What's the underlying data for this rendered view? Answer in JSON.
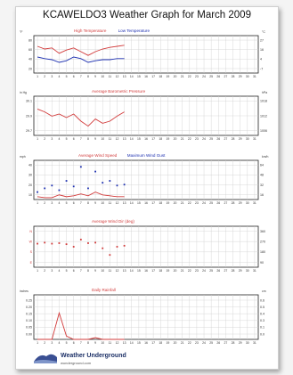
{
  "page": {
    "title": "KCAWELDO3 Weather Graph for March 2009"
  },
  "logo": {
    "name": "Weather Underground",
    "url": "wunderground.com"
  },
  "colors": {
    "red": "#d23b3b",
    "blue": "#1c2fb0",
    "grid": "#cfcfcf"
  },
  "chart_data": [
    {
      "type": "line",
      "title": "",
      "legend": [
        "High Temperature",
        "Low Temperature"
      ],
      "ylabel_left": "°F",
      "ylabel_right": "°C",
      "left_ticks": [
        "80",
        "60",
        "40",
        "20"
      ],
      "right_ticks": [
        "27",
        "16",
        "4",
        "-7"
      ],
      "ylim": [
        15,
        85
      ],
      "x": [
        1,
        2,
        3,
        4,
        5,
        6,
        7,
        8,
        9,
        10,
        11,
        12,
        13,
        14,
        15,
        16,
        17,
        18,
        19,
        20,
        21,
        22,
        23,
        24,
        25,
        26,
        27,
        28,
        29,
        30,
        31
      ],
      "series": [
        {
          "name": "High Temperature",
          "color": "#d23b3b",
          "x": [
            1,
            2,
            3,
            4,
            5,
            6,
            7,
            8,
            9,
            10,
            11,
            12,
            13
          ],
          "values": [
            65,
            60,
            62,
            52,
            58,
            62,
            55,
            48,
            55,
            60,
            63,
            65,
            67
          ]
        },
        {
          "name": "Low Temperature",
          "color": "#1c2fb0",
          "x": [
            1,
            2,
            3,
            4,
            5,
            6,
            7,
            8,
            9,
            10,
            11,
            12,
            13
          ],
          "values": [
            45,
            42,
            40,
            35,
            38,
            45,
            42,
            35,
            38,
            40,
            40,
            42,
            42
          ]
        }
      ]
    },
    {
      "type": "line",
      "title": "Average Barometric Pressure",
      "legend": [
        "Average Barometric Pressure"
      ],
      "ylabel_left": "in Hg",
      "ylabel_right": "hPa",
      "left_ticks": [
        "30.1",
        "29.9",
        "29.7"
      ],
      "right_ticks": [
        "1018",
        "1012",
        "1006"
      ],
      "ylim": [
        29.65,
        30.2
      ],
      "x": [
        1,
        2,
        3,
        4,
        5,
        6,
        7,
        8,
        9,
        10,
        11,
        12,
        13,
        14,
        15,
        16,
        17,
        18,
        19,
        20,
        21,
        22,
        23,
        24,
        25,
        26,
        27,
        28,
        29,
        30,
        31
      ],
      "series": [
        {
          "name": "Average Barometric Pressure",
          "color": "#d23b3b",
          "x": [
            1,
            2,
            3,
            4,
            5,
            6,
            7,
            8,
            9,
            10,
            11,
            12,
            13
          ],
          "values": [
            30.02,
            29.98,
            29.92,
            29.95,
            29.9,
            29.95,
            29.85,
            29.78,
            29.88,
            29.82,
            29.85,
            29.92,
            29.98
          ]
        }
      ]
    },
    {
      "type": "scatter",
      "title": "",
      "legend": [
        "Average Wind Speed",
        "Maximum Wind Gust"
      ],
      "ylabel_left": "mph",
      "ylabel_right": "km/h",
      "left_ticks": [
        "40",
        "30",
        "20",
        "10"
      ],
      "right_ticks": [
        "64",
        "48",
        "32",
        "16"
      ],
      "ylim": [
        0,
        42
      ],
      "x": [
        1,
        2,
        3,
        4,
        5,
        6,
        7,
        8,
        9,
        10,
        11,
        12,
        13,
        14,
        15,
        16,
        17,
        18,
        19,
        20,
        21,
        22,
        23,
        24,
        25,
        26,
        27,
        28,
        29,
        30,
        31
      ],
      "series": [
        {
          "name": "Average Wind Speed",
          "color": "#d23b3b",
          "style": "line",
          "x": [
            1,
            2,
            3,
            4,
            5,
            6,
            7,
            8,
            9,
            10,
            11,
            12,
            13
          ],
          "values": [
            3,
            2,
            2,
            5,
            3,
            4,
            6,
            4,
            8,
            5,
            4,
            3,
            3
          ]
        },
        {
          "name": "Maximum Wind Gust",
          "color": "#1c2fb0",
          "style": "points",
          "x": [
            1,
            2,
            3,
            4,
            5,
            6,
            7,
            8,
            9,
            10,
            11,
            12,
            13
          ],
          "values": [
            8,
            12,
            15,
            10,
            20,
            14,
            35,
            12,
            30,
            18,
            20,
            15,
            16
          ]
        }
      ]
    },
    {
      "type": "scatter",
      "title": "Average Wind Dir (deg)",
      "legend": [
        "Average Wind Dir (deg)"
      ],
      "ylabel_left": "",
      "ylabel_right": "",
      "left_ticks": [
        "N",
        "W",
        "S",
        "E"
      ],
      "right_ticks": [
        "360",
        "270",
        "180",
        "90"
      ],
      "ylim": [
        0,
        400
      ],
      "x": [
        1,
        2,
        3,
        4,
        5,
        6,
        7,
        8,
        9,
        10,
        11,
        12,
        13,
        14,
        15,
        16,
        17,
        18,
        19,
        20,
        21,
        22,
        23,
        24,
        25,
        26,
        27,
        28,
        29,
        30,
        31
      ],
      "series": [
        {
          "name": "Average Wind Dir (deg)",
          "color": "#d23b3b",
          "style": "points",
          "x": [
            1,
            2,
            3,
            4,
            5,
            6,
            7,
            8,
            9,
            10,
            11,
            12,
            13
          ],
          "values": [
            230,
            240,
            230,
            235,
            225,
            200,
            270,
            235,
            240,
            185,
            120,
            200,
            210
          ]
        }
      ]
    },
    {
      "type": "line",
      "title": "Daily Rainfall",
      "legend": [
        "Daily Rainfall"
      ],
      "ylabel_left": "inches",
      "ylabel_right": "cm",
      "left_ticks": [
        "0.25",
        "0.20",
        "0.15",
        "0.10",
        "0.05",
        "0.00"
      ],
      "right_ticks": [
        "0.6",
        "0.5",
        "0.4",
        "0.3",
        "0.1",
        "0.0"
      ],
      "ylim": [
        0,
        0.27
      ],
      "x": [
        1,
        2,
        3,
        4,
        5,
        6,
        7,
        8,
        9,
        10,
        11,
        12,
        13,
        14,
        15,
        16,
        17,
        18,
        19,
        20,
        21,
        22,
        23,
        24,
        25,
        26,
        27,
        28,
        29,
        30,
        31
      ],
      "series": [
        {
          "name": "Daily Rainfall",
          "color": "#d23b3b",
          "x": [
            1,
            2,
            3,
            4,
            5,
            6,
            7,
            8,
            9,
            10,
            11,
            12,
            13
          ],
          "values": [
            0,
            0,
            0,
            0.16,
            0.02,
            0,
            0,
            0,
            0.01,
            0,
            0,
            0,
            0
          ]
        }
      ]
    }
  ]
}
